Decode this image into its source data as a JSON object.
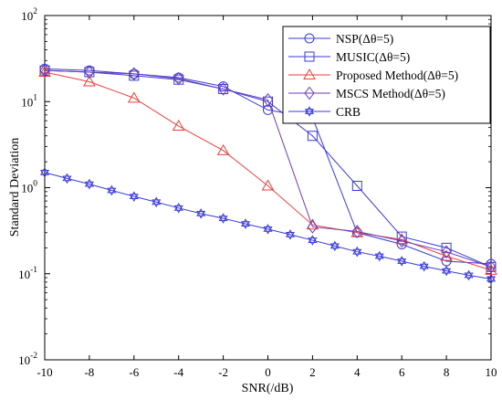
{
  "chart_data": {
    "type": "line",
    "xlabel": "SNR(/dB)",
    "ylabel": "Standard Deviation",
    "xlim": [
      -10,
      10
    ],
    "ylim_log10": [
      -2,
      2
    ],
    "y_scale": "log",
    "x_ticks": [
      "-10",
      "-8",
      "-6",
      "-4",
      "-2",
      "0",
      "2",
      "4",
      "6",
      "8",
      "10"
    ],
    "x_tick_values": [
      -10,
      -8,
      -6,
      -4,
      -2,
      0,
      2,
      4,
      6,
      8,
      10
    ],
    "y_ticks": [
      {
        "base": "10",
        "exp": "2",
        "value": 100
      },
      {
        "base": "10",
        "exp": "1",
        "value": 10
      },
      {
        "base": "10",
        "exp": "0",
        "value": 1
      },
      {
        "base": "10",
        "exp": "-1",
        "value": 0.1
      },
      {
        "base": "10",
        "exp": "-2",
        "value": 0.01
      }
    ],
    "grid": false,
    "legend_position": "top-right",
    "series": [
      {
        "name": "NSP(Δθ=5)",
        "color": "#3a3adc",
        "marker": "circle",
        "x": [
          -10,
          -8,
          -6,
          -4,
          -2,
          0,
          2,
          4,
          6,
          8,
          10
        ],
        "y": [
          24,
          23,
          21,
          19,
          15,
          8,
          6.5,
          0.3,
          0.22,
          0.14,
          0.13
        ]
      },
      {
        "name": "MUSIC(Δθ=5)",
        "color": "#3a3adc",
        "marker": "square",
        "x": [
          -10,
          -8,
          -6,
          -4,
          -2,
          0,
          2,
          4,
          6,
          8,
          10
        ],
        "y": [
          23,
          22,
          20,
          18,
          14,
          10,
          4,
          1.05,
          0.27,
          0.2,
          0.12
        ]
      },
      {
        "name": "Proposed Method(Δθ=5)",
        "color": "#e8413c",
        "marker": "triangle",
        "x": [
          -10,
          -8,
          -6,
          -4,
          -2,
          0,
          2,
          4,
          6,
          8,
          10
        ],
        "y": [
          22,
          17,
          11,
          5.2,
          2.7,
          1.05,
          0.37,
          0.3,
          0.25,
          0.16,
          0.11
        ]
      },
      {
        "name": "MSCS Method(Δθ=5)",
        "color": "#6a3cb4",
        "marker": "diamond",
        "x": [
          -10,
          -8,
          -6,
          -4,
          -2,
          0,
          2,
          4,
          6,
          8,
          10
        ],
        "y": [
          23,
          22,
          21,
          18.5,
          14,
          10.5,
          0.35,
          0.31,
          0.24,
          0.18,
          0.12
        ]
      },
      {
        "name": "CRB",
        "color": "#3a3adc",
        "marker": "hexagram",
        "x": [
          -10,
          -9,
          -8,
          -7,
          -6,
          -5,
          -4,
          -3,
          -2,
          -1,
          0,
          1,
          2,
          3,
          4,
          5,
          6,
          7,
          8,
          9,
          10
        ],
        "y": [
          1.5,
          1.28,
          1.1,
          0.93,
          0.79,
          0.68,
          0.58,
          0.5,
          0.44,
          0.38,
          0.33,
          0.285,
          0.245,
          0.21,
          0.18,
          0.16,
          0.14,
          0.122,
          0.108,
          0.096,
          0.087
        ]
      }
    ]
  }
}
